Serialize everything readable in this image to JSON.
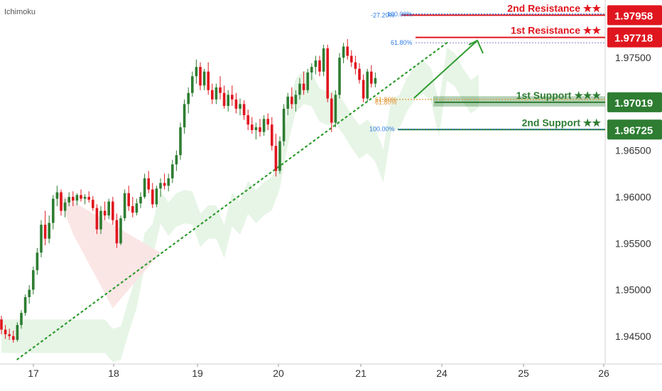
{
  "indicator": {
    "label": "Ichimoku"
  },
  "colors": {
    "up": "#2e7d32",
    "down": "#e0161f",
    "resistance": "#e0161f",
    "support": "#2e7d32",
    "trend": "#2e9b2e",
    "cloud_bull": "#e3f3e2",
    "cloud_bear": "#fbe3e3",
    "fib_blue": "#2f7be0",
    "fib_orange": "#e09a3a",
    "axis_text": "#333333"
  },
  "chart_data": {
    "type": "candlestick",
    "instrument_note": "",
    "x_ticks": [
      "17",
      "18",
      "19",
      "20",
      "21",
      "24",
      "25",
      "26"
    ],
    "y_ticks": [
      "1.97500",
      "1.97000",
      "1.96500",
      "1.96000",
      "1.95500",
      "1.95000",
      "1.94500"
    ],
    "ylim": [
      1.942,
      1.9806
    ],
    "price_labels": [
      {
        "name": "2nd Resistance",
        "value": "1.97958",
        "role": "resistance"
      },
      {
        "name": "1st Resistance",
        "value": "1.97718",
        "role": "resistance"
      },
      {
        "name": "1st Support",
        "value": "1.97019",
        "role": "support"
      },
      {
        "name": "2nd Support",
        "value": "1.96725",
        "role": "support"
      }
    ],
    "level_titles": [
      {
        "text": "2nd Resistance ★★",
        "level": 1.97958,
        "role": "resistance"
      },
      {
        "text": "1st Resistance ★★",
        "level": 1.97718,
        "role": "resistance"
      },
      {
        "text": "1st Support ★★★",
        "level": 1.97019,
        "role": "support"
      },
      {
        "text": "2nd Support ★★",
        "level": 1.96725,
        "role": "support"
      }
    ],
    "fib_labels": [
      {
        "text": "-27.20%",
        "level": 1.97958,
        "color": "fib_blue"
      },
      {
        "text": "100.00%",
        "level": 1.9797,
        "color": "fib_blue"
      },
      {
        "text": "61.80%",
        "level": 1.9766,
        "color": "fib_blue"
      },
      {
        "text": "61.80%",
        "level": 1.9705,
        "color": "fib_orange"
      },
      {
        "text": "61.80%",
        "level": 1.9702,
        "color": "fib_orange"
      },
      {
        "text": "100.00%",
        "level": 1.9673,
        "color": "fib_blue"
      }
    ],
    "candles_ohlc": [
      [
        1.9468,
        1.9472,
        1.9452,
        1.9457
      ],
      [
        1.9457,
        1.9462,
        1.9447,
        1.9452
      ],
      [
        1.9452,
        1.9458,
        1.9446,
        1.945
      ],
      [
        1.945,
        1.9456,
        1.9443,
        1.9446
      ],
      [
        1.9446,
        1.9465,
        1.9444,
        1.9462
      ],
      [
        1.9462,
        1.9478,
        1.9458,
        1.9475
      ],
      [
        1.9475,
        1.9495,
        1.9472,
        1.9492
      ],
      [
        1.9492,
        1.9505,
        1.9485,
        1.95
      ],
      [
        1.95,
        1.9525,
        1.9495,
        1.9521
      ],
      [
        1.9521,
        1.9545,
        1.9516,
        1.954
      ],
      [
        1.954,
        1.9575,
        1.9535,
        1.957
      ],
      [
        1.957,
        1.9585,
        1.9548,
        1.9555
      ],
      [
        1.9555,
        1.958,
        1.955,
        1.9572
      ],
      [
        1.9572,
        1.9602,
        1.9565,
        1.9598
      ],
      [
        1.9598,
        1.9612,
        1.959,
        1.9605
      ],
      [
        1.9605,
        1.9608,
        1.958,
        1.9585
      ],
      [
        1.9585,
        1.9598,
        1.9578,
        1.9594
      ],
      [
        1.9594,
        1.9605,
        1.959,
        1.96
      ],
      [
        1.96,
        1.9606,
        1.959,
        1.9596
      ],
      [
        1.9596,
        1.9604,
        1.9591,
        1.9602
      ],
      [
        1.9602,
        1.9608,
        1.9595,
        1.9598
      ],
      [
        1.9598,
        1.9603,
        1.9592,
        1.96
      ],
      [
        1.96,
        1.9606,
        1.9594,
        1.9597
      ],
      [
        1.9597,
        1.9601,
        1.9585,
        1.9588
      ],
      [
        1.9588,
        1.9592,
        1.956,
        1.9565
      ],
      [
        1.9565,
        1.959,
        1.956,
        1.9585
      ],
      [
        1.9585,
        1.9595,
        1.9575,
        1.958
      ],
      [
        1.958,
        1.9598,
        1.9576,
        1.9595
      ],
      [
        1.9595,
        1.96,
        1.957,
        1.9575
      ],
      [
        1.9575,
        1.9582,
        1.9545,
        1.955
      ],
      [
        1.955,
        1.958,
        1.9548,
        1.9577
      ],
      [
        1.9577,
        1.9608,
        1.9574,
        1.9604
      ],
      [
        1.9604,
        1.9612,
        1.9585,
        1.959
      ],
      [
        1.959,
        1.96,
        1.9578,
        1.9583
      ],
      [
        1.9583,
        1.9598,
        1.958,
        1.9593
      ],
      [
        1.9593,
        1.9605,
        1.9588,
        1.96
      ],
      [
        1.96,
        1.9625,
        1.9598,
        1.962
      ],
      [
        1.962,
        1.9628,
        1.9604,
        1.9608
      ],
      [
        1.9608,
        1.9615,
        1.9588,
        1.9592
      ],
      [
        1.9592,
        1.9612,
        1.9589,
        1.9609
      ],
      [
        1.9609,
        1.962,
        1.96,
        1.9615
      ],
      [
        1.9615,
        1.9625,
        1.9608,
        1.9612
      ],
      [
        1.9612,
        1.9625,
        1.9606,
        1.962
      ],
      [
        1.962,
        1.964,
        1.9615,
        1.9635
      ],
      [
        1.9635,
        1.965,
        1.9628,
        1.9645
      ],
      [
        1.9645,
        1.968,
        1.964,
        1.9675
      ],
      [
        1.9675,
        1.9705,
        1.9668,
        1.97
      ],
      [
        1.97,
        1.9718,
        1.969,
        1.9712
      ],
      [
        1.9712,
        1.9735,
        1.9708,
        1.973
      ],
      [
        1.973,
        1.9748,
        1.9722,
        1.974
      ],
      [
        1.974,
        1.9745,
        1.9715,
        1.972
      ],
      [
        1.972,
        1.9738,
        1.9715,
        1.9735
      ],
      [
        1.9735,
        1.9745,
        1.971,
        1.9715
      ],
      [
        1.9715,
        1.9722,
        1.97,
        1.9705
      ],
      [
        1.9705,
        1.9722,
        1.97,
        1.9718
      ],
      [
        1.9718,
        1.973,
        1.9705,
        1.9712
      ],
      [
        1.9712,
        1.972,
        1.9695,
        1.9698
      ],
      [
        1.9698,
        1.9715,
        1.9692,
        1.971
      ],
      [
        1.971,
        1.972,
        1.9698,
        1.9705
      ],
      [
        1.9705,
        1.9712,
        1.969,
        1.9695
      ],
      [
        1.9695,
        1.9706,
        1.9688,
        1.97
      ],
      [
        1.97,
        1.9704,
        1.9683,
        1.9688
      ],
      [
        1.9688,
        1.9694,
        1.9672,
        1.9678
      ],
      [
        1.9678,
        1.9686,
        1.9668,
        1.9672
      ],
      [
        1.9672,
        1.968,
        1.9662,
        1.9675
      ],
      [
        1.9675,
        1.9684,
        1.9665,
        1.967
      ],
      [
        1.967,
        1.9688,
        1.9666,
        1.9684
      ],
      [
        1.9684,
        1.969,
        1.9672,
        1.9678
      ],
      [
        1.9678,
        1.9686,
        1.965,
        1.9655
      ],
      [
        1.9655,
        1.9668,
        1.9622,
        1.9628
      ],
      [
        1.9628,
        1.9665,
        1.9625,
        1.966
      ],
      [
        1.966,
        1.97,
        1.9655,
        1.9695
      ],
      [
        1.9695,
        1.9712,
        1.9688,
        1.9708
      ],
      [
        1.9708,
        1.9718,
        1.9695,
        1.97
      ],
      [
        1.97,
        1.9715,
        1.9692,
        1.971
      ],
      [
        1.971,
        1.9728,
        1.9705,
        1.9722
      ],
      [
        1.9722,
        1.9735,
        1.971,
        1.9715
      ],
      [
        1.9715,
        1.9738,
        1.9712,
        1.9734
      ],
      [
        1.9734,
        1.9744,
        1.9726,
        1.974
      ],
      [
        1.974,
        1.9752,
        1.9732,
        1.9747
      ],
      [
        1.9747,
        1.9752,
        1.973,
        1.9735
      ],
      [
        1.9735,
        1.9764,
        1.973,
        1.976
      ],
      [
        1.976,
        1.9764,
        1.9702,
        1.9706
      ],
      [
        1.9706,
        1.9712,
        1.967,
        1.968
      ],
      [
        1.968,
        1.9715,
        1.9675,
        1.971
      ],
      [
        1.971,
        1.9755,
        1.9706,
        1.975
      ],
      [
        1.975,
        1.9766,
        1.9744,
        1.9762
      ],
      [
        1.9762,
        1.977,
        1.9748,
        1.9752
      ],
      [
        1.9752,
        1.9758,
        1.974,
        1.9745
      ],
      [
        1.9745,
        1.9752,
        1.9732,
        1.9738
      ],
      [
        1.9738,
        1.9744,
        1.9722,
        1.9726
      ],
      [
        1.9726,
        1.9732,
        1.9702,
        1.9706
      ],
      [
        1.9706,
        1.9738,
        1.9702,
        1.9735
      ],
      [
        1.9735,
        1.9742,
        1.9718,
        1.9722
      ],
      [
        1.9722,
        1.9734,
        1.9718,
        1.9728
      ]
    ],
    "trendline": {
      "from": {
        "candle": 4,
        "price": 1.9425
      },
      "to": {
        "candle": 112,
        "price": 1.9766
      }
    },
    "forecast_arrow": {
      "from": {
        "candle": 93,
        "price": 1.9708
      },
      "to": {
        "candle": 103,
        "price": 1.977
      }
    }
  }
}
